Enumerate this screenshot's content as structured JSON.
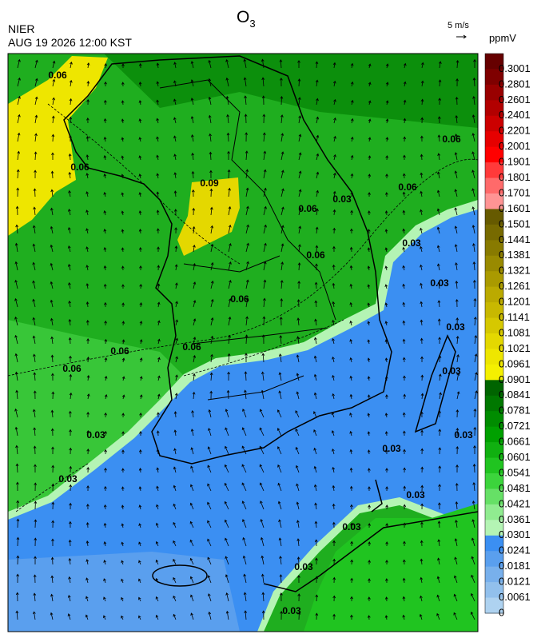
{
  "header": {
    "title": {
      "main": "O",
      "subscript": "3"
    },
    "agency": "NIER",
    "timestamp": "AUG 19 2026 12:00 KST",
    "wind_reference": "5 m/s"
  },
  "colorbar": {
    "unit": "ppmV",
    "labels": [
      "0.3001",
      "0.2801",
      "0.2601",
      "0.2401",
      "0.2201",
      "0.2001",
      "0.1901",
      "0.1801",
      "0.1701",
      "0.1601",
      "0.1501",
      "0.1441",
      "0.1381",
      "0.1321",
      "0.1261",
      "0.1201",
      "0.1141",
      "0.1081",
      "0.1021",
      "0.0961",
      "0.0901",
      "0.0841",
      "0.0781",
      "0.0721",
      "0.0661",
      "0.0601",
      "0.0541",
      "0.0481",
      "0.0421",
      "0.0361",
      "0.0301",
      "0.0241",
      "0.0181",
      "0.0121",
      "0.0061",
      "0"
    ],
    "colors": [
      "#660000",
      "#7f0000",
      "#990000",
      "#b20000",
      "#cc0000",
      "#e60000",
      "#ff0000",
      "#ff3a3a",
      "#ff6a6a",
      "#ff9494",
      "#665a00",
      "#776a00",
      "#887a00",
      "#998a00",
      "#aa9a00",
      "#bbaa00",
      "#c8b800",
      "#d6c800",
      "#e4d800",
      "#eee600",
      "#f5f000",
      "#006400",
      "#007800",
      "#008c00",
      "#00a000",
      "#10b010",
      "#20c420",
      "#3cd43c",
      "#66e066",
      "#90ec90",
      "#b4f4b4",
      "#3b8ff2",
      "#5a9fee",
      "#78b0ec",
      "#92c0ec",
      "#aed2f0"
    ]
  },
  "map": {
    "contour_labels": [
      "0.09",
      "0.06",
      "0.06",
      "0.06",
      "0.06",
      "0.06",
      "0.06",
      "0.06",
      "0.06",
      "0.06",
      "0.06",
      "0.03",
      "0.03",
      "0.03",
      "0.03",
      "0.03",
      "0.03",
      "0.03",
      "0.03",
      "0.03",
      "0.03",
      "0.03",
      "0.03",
      "0.03"
    ]
  }
}
